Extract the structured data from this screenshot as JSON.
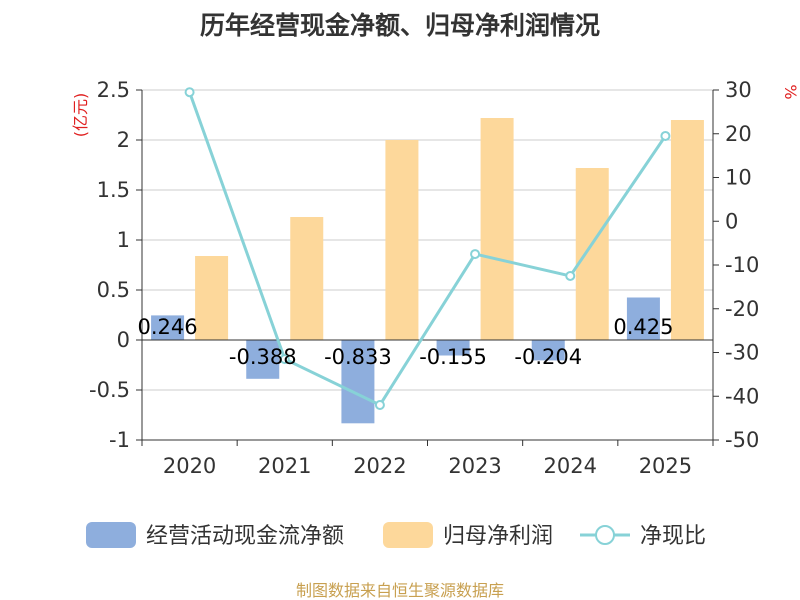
{
  "chart_data": {
    "type": "bar",
    "title": "历年经营现金净额、归母净利润情况",
    "categories": [
      "2020",
      "2021",
      "2022",
      "2023",
      "2024",
      "2025"
    ],
    "series": [
      {
        "name": "经营活动现金流净额",
        "kind": "bar",
        "axis": "left",
        "color": "#8eaedd",
        "values": [
          0.246,
          -0.388,
          -0.833,
          -0.155,
          -0.204,
          0.425
        ],
        "labels": [
          "0.246",
          "-0.388",
          "-0.833",
          "-0.155",
          "-0.204",
          "0.425"
        ]
      },
      {
        "name": "归母净利润",
        "kind": "bar",
        "axis": "left",
        "color": "#fdd89b",
        "values": [
          0.84,
          1.23,
          2.0,
          2.22,
          1.72,
          2.2
        ]
      },
      {
        "name": "净现比",
        "kind": "line",
        "axis": "right",
        "color": "#87d2d7",
        "values": [
          29.5,
          -31.5,
          -42.0,
          -7.5,
          -12.5,
          19.5
        ]
      }
    ],
    "left_axis": {
      "unit": "(亿元)",
      "ylim": [
        -1,
        2.5
      ],
      "ticks": [
        2.5,
        2,
        1.5,
        1,
        0.5,
        0,
        -0.5,
        -1
      ],
      "tick_labels": [
        "2.5",
        "2",
        "1.5",
        "1",
        "0.5",
        "0",
        "-0.5",
        "-1"
      ]
    },
    "right_axis": {
      "unit": "%",
      "ylim": [
        -50,
        30
      ],
      "ticks": [
        30,
        20,
        10,
        0,
        -10,
        -20,
        -30,
        -40,
        -50
      ],
      "tick_labels": [
        "30",
        "20",
        "10",
        "0",
        "-10",
        "-20",
        "-30",
        "-40",
        "-50"
      ]
    },
    "grid": true,
    "legend_position": "bottom",
    "source": "制图数据来自恒生聚源数据库"
  }
}
